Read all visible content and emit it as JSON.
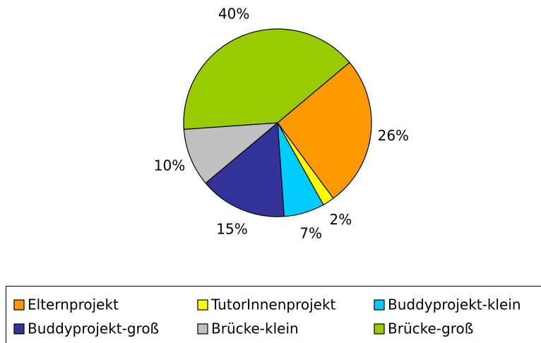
{
  "chart_data": {
    "type": "pie",
    "categories": [
      "Elternprojekt",
      "TutorInnenprojekt",
      "Buddyprojekt-klein",
      "Buddyprojekt-groß",
      "Brücke-klein",
      "Brücke-groß"
    ],
    "values": [
      26,
      2,
      7,
      15,
      10,
      40
    ],
    "value_labels": [
      "26%",
      "2%",
      "7%",
      "15%",
      "10%",
      "40%"
    ],
    "colors": [
      "#ff9900",
      "#ffff00",
      "#00ccff",
      "#333399",
      "#c0c0c0",
      "#99cc00"
    ]
  }
}
